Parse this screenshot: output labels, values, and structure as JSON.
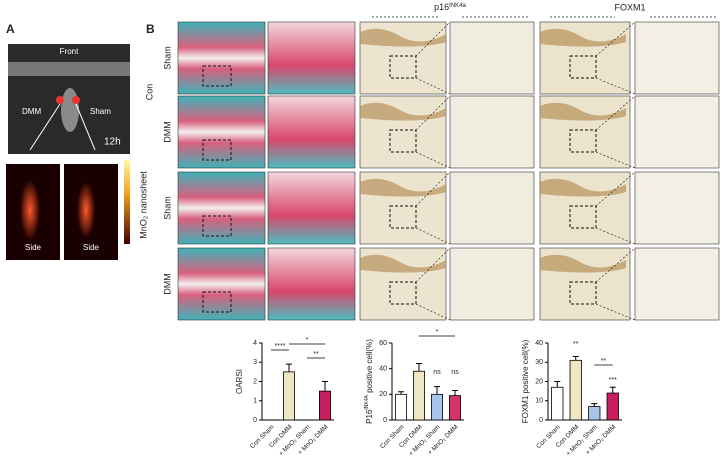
{
  "panel_a": {
    "label": "A",
    "photo": {
      "front": "Front",
      "left": "DMM",
      "right": "Sham",
      "time": "12h"
    },
    "side_views": [
      "Side",
      "Side"
    ],
    "colorbar_label": "MnO₂ nanosheet"
  },
  "panel_b": {
    "label": "B",
    "column_headers": [
      {
        "text": "p16",
        "sup": "INK4a"
      },
      {
        "text": "FOXM1"
      }
    ],
    "group_label": "Con",
    "row_labels": [
      "Sham",
      "DMM",
      "Sham",
      "DMM"
    ]
  },
  "chart_data": [
    {
      "type": "bar",
      "ylabel": {
        "text": "OARSI"
      },
      "categories": [
        "Con Sham",
        "Con DMM",
        "+ MnO₂ Sham",
        "+ MnO₂ DMM"
      ],
      "values": [
        0,
        2.5,
        0,
        1.5
      ],
      "errors": [
        0,
        0.4,
        0,
        0.5
      ],
      "colors": [
        "#ffffff",
        "#efe6c2",
        "#a9c4ea",
        "#c81d5e"
      ],
      "ylim": [
        0,
        4
      ],
      "yticks": [
        0,
        1,
        2,
        3,
        4
      ],
      "annotations": [
        "****",
        "*",
        "**"
      ]
    },
    {
      "type": "bar",
      "ylabel": {
        "text": "P16",
        "sup": "INK4A",
        "rest": " positive cell(%)"
      },
      "categories": [
        "Con Sham",
        "Con DMM",
        "+ MnO₂ Sham",
        "+ MnO₂ DMM"
      ],
      "values": [
        20,
        38,
        20,
        19
      ],
      "errors": [
        2,
        6,
        6,
        4
      ],
      "colors": [
        "#ffffff",
        "#efe6c2",
        "#a9c4ea",
        "#d6336c"
      ],
      "ylim": [
        0,
        60
      ],
      "yticks": [
        0,
        20,
        40,
        60
      ],
      "annotations": [
        "*",
        "ns",
        "ns"
      ]
    },
    {
      "type": "bar",
      "ylabel": {
        "text": "FOXM1 positive cell(%)"
      },
      "categories": [
        "Con Sham",
        "Con DMM",
        "+ MnO₂ Sham",
        "+ MnO₂ DMM"
      ],
      "values": [
        17,
        31,
        7,
        14
      ],
      "errors": [
        3,
        2,
        1.5,
        3
      ],
      "colors": [
        "#ffffff",
        "#efe6c2",
        "#a9c4ea",
        "#c81d5e"
      ],
      "ylim": [
        0,
        40
      ],
      "yticks": [
        0,
        10,
        20,
        30,
        40
      ],
      "annotations": [
        "**",
        "**",
        "***"
      ]
    }
  ]
}
